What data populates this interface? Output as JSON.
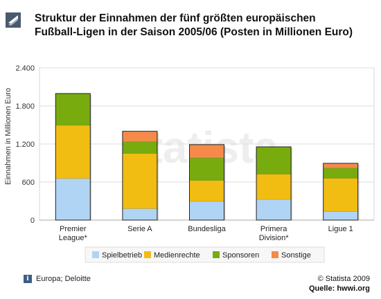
{
  "title": "Struktur der Einnahmen der fünf größten europäischen Fußball-Ligen in der Saison 2005/06 (Posten in Millionen Euro)",
  "watermark": "statista",
  "chart_data": {
    "type": "bar",
    "stacked": true,
    "categories": [
      "Premier League*",
      "Serie A",
      "Bundesliga",
      "Primera Division*",
      "Ligue 1"
    ],
    "category_lines": [
      [
        "Premier",
        "League*"
      ],
      [
        "Serie A"
      ],
      [
        "Bundesliga"
      ],
      [
        "Primera",
        "Division*"
      ],
      [
        "Ligue 1"
      ]
    ],
    "series": [
      {
        "name": "Spielbetrieb",
        "color": "#b0d4f4",
        "values": [
          655,
          180,
          295,
          325,
          135
        ]
      },
      {
        "name": "Medienrechte",
        "color": "#f2bd12",
        "values": [
          840,
          870,
          330,
          400,
          525
        ]
      },
      {
        "name": "Sponsoren",
        "color": "#78ac0e",
        "values": [
          500,
          185,
          355,
          430,
          160
        ]
      },
      {
        "name": "Sonstige",
        "color": "#f58a4a",
        "values": [
          0,
          165,
          210,
          0,
          75
        ]
      }
    ],
    "ylabel": "Einnahmen in Millionen Euro",
    "xlabel": "",
    "ylim": [
      0,
      2400
    ],
    "yticks": [
      0,
      600,
      1200,
      1800,
      2400
    ],
    "ytick_labels": [
      "0",
      "600",
      "1.200",
      "1.800",
      "2.400"
    ],
    "grid": true,
    "legend_position": "bottom"
  },
  "footer": {
    "info_icon": "info-icon",
    "source_left": "Europa; Deloitte",
    "copyright": "© Statista 2009",
    "source_right": "Quelle: hwwi.org"
  }
}
